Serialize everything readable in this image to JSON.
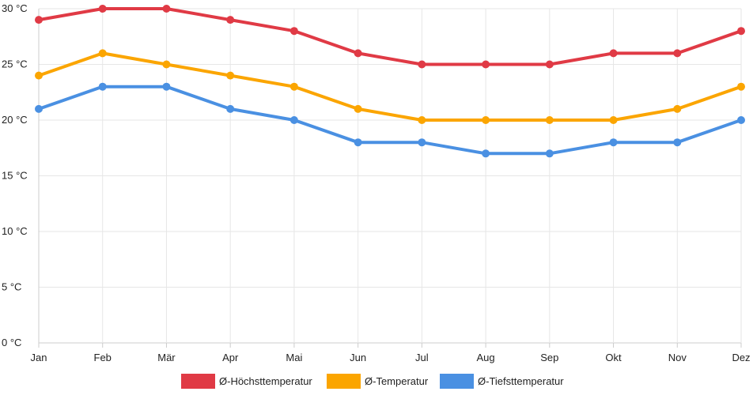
{
  "chart_data": {
    "type": "line",
    "categories": [
      "Jan",
      "Feb",
      "Mär",
      "Apr",
      "Mai",
      "Jun",
      "Jul",
      "Aug",
      "Sep",
      "Okt",
      "Nov",
      "Dez"
    ],
    "ylim": [
      0,
      30
    ],
    "yticks": [
      0,
      5,
      10,
      15,
      20,
      25,
      30
    ],
    "y_unit_suffix": " °C",
    "grid": true,
    "legend_position": "bottom",
    "series": [
      {
        "name": "Ø-Höchsttemperatur",
        "color": "#e03a45",
        "values": [
          29,
          30,
          30,
          29,
          28,
          26,
          25,
          25,
          25,
          26,
          26,
          28
        ]
      },
      {
        "name": "Ø-Temperatur",
        "color": "#fba500",
        "values": [
          24,
          26,
          25,
          24,
          23,
          21,
          20,
          20,
          20,
          20,
          21,
          23
        ]
      },
      {
        "name": "Ø-Tiefsttemperatur",
        "color": "#4a90e2",
        "values": [
          21,
          23,
          23,
          21,
          20,
          18,
          18,
          17,
          17,
          18,
          18,
          20
        ]
      }
    ]
  }
}
